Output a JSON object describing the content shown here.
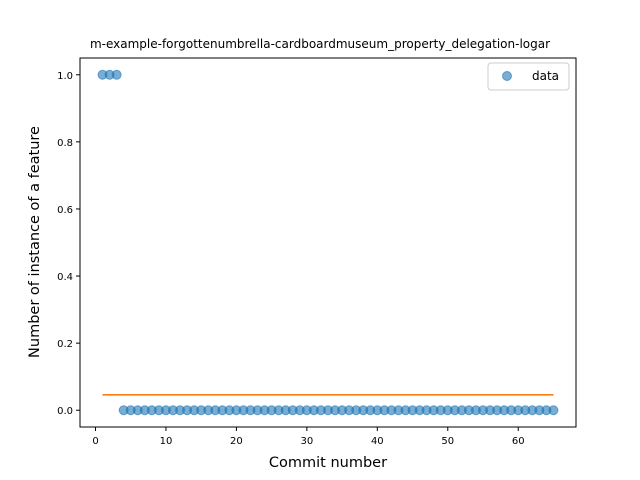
{
  "chart_data": {
    "type": "scatter",
    "title": "m-example-forgottenumbrella-cardboardmuseum_property_delegation-logar",
    "xlabel": "Commit number",
    "ylabel": "Number of instance of a feature",
    "xlim": [
      -2.2,
      68.2
    ],
    "ylim": [
      -0.05,
      1.05
    ],
    "xticks": [
      0,
      10,
      20,
      30,
      40,
      50,
      60
    ],
    "yticks": [
      0.0,
      0.2,
      0.4,
      0.6,
      0.8,
      1.0
    ],
    "xtick_labels": [
      "0",
      "10",
      "20",
      "30",
      "40",
      "50",
      "60"
    ],
    "ytick_labels": [
      "0.0",
      "0.2",
      "0.4",
      "0.6",
      "0.8",
      "1.0"
    ],
    "grid": false,
    "legend": {
      "position": "upper right",
      "entries": [
        "data"
      ]
    },
    "series": [
      {
        "name": "data",
        "kind": "scatter",
        "color": "#1f77b4",
        "x": [
          1,
          2,
          3,
          4,
          5,
          6,
          7,
          8,
          9,
          10,
          11,
          12,
          13,
          14,
          15,
          16,
          17,
          18,
          19,
          20,
          21,
          22,
          23,
          24,
          25,
          26,
          27,
          28,
          29,
          30,
          31,
          32,
          33,
          34,
          35,
          36,
          37,
          38,
          39,
          40,
          41,
          42,
          43,
          44,
          45,
          46,
          47,
          48,
          49,
          50,
          51,
          52,
          53,
          54,
          55,
          56,
          57,
          58,
          59,
          60,
          61,
          62,
          63,
          64,
          65
        ],
        "y": [
          1,
          1,
          1,
          0,
          0,
          0,
          0,
          0,
          0,
          0,
          0,
          0,
          0,
          0,
          0,
          0,
          0,
          0,
          0,
          0,
          0,
          0,
          0,
          0,
          0,
          0,
          0,
          0,
          0,
          0,
          0,
          0,
          0,
          0,
          0,
          0,
          0,
          0,
          0,
          0,
          0,
          0,
          0,
          0,
          0,
          0,
          0,
          0,
          0,
          0,
          0,
          0,
          0,
          0,
          0,
          0,
          0,
          0,
          0,
          0,
          0,
          0,
          0,
          0,
          0
        ]
      },
      {
        "kind": "line",
        "color": "#ff7f0e",
        "x": [
          1,
          65
        ],
        "y": [
          0.046,
          0.046
        ]
      }
    ]
  }
}
